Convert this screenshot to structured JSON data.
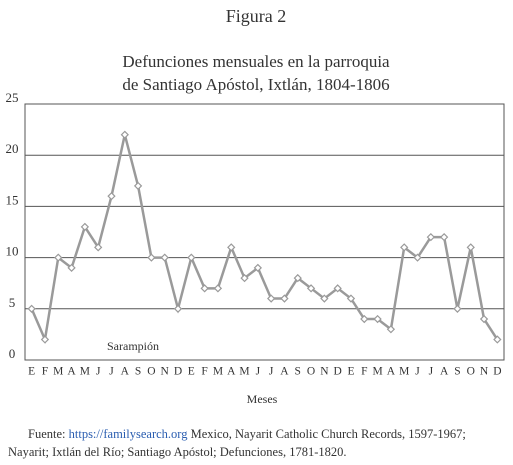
{
  "figure_label": "Figura 2",
  "chart_data": {
    "type": "line",
    "title": [
      "Defunciones mensuales en la parroquia",
      "de Santiago Apóstol, Ixtlán, 1804-1806"
    ],
    "x_label": "Meses",
    "annotation": "Sarampión",
    "categories": [
      "E",
      "F",
      "M",
      "A",
      "M",
      "J",
      "J",
      "A",
      "S",
      "O",
      "N",
      "D",
      "E",
      "F",
      "M",
      "A",
      "M",
      "J",
      "J",
      "A",
      "S",
      "O",
      "N",
      "D",
      "E",
      "F",
      "M",
      "A",
      "M",
      "J",
      "J",
      "A",
      "S",
      "O",
      "N",
      "D"
    ],
    "values": [
      5,
      2,
      10,
      9,
      13,
      11,
      16,
      22,
      17,
      10,
      10,
      5,
      10,
      7,
      7,
      11,
      8,
      9,
      6,
      6,
      8,
      7,
      6,
      7,
      6,
      4,
      4,
      3,
      11,
      10,
      12,
      12,
      5,
      11,
      4,
      2
    ],
    "color": "#9a9a9a",
    "ylim": [
      0,
      25
    ],
    "yticks": [
      0,
      5,
      10,
      15,
      20,
      25
    ],
    "grid": true
  },
  "source": {
    "prefix": "Fuente:",
    "link": "https://familysearch.org",
    "text": "Mexico, Nayarit Catholic Church Records, 1597-1967; Nayarit; Ixtlán del Río; Santiago Apóstol; Defunciones, 1781-1820."
  }
}
